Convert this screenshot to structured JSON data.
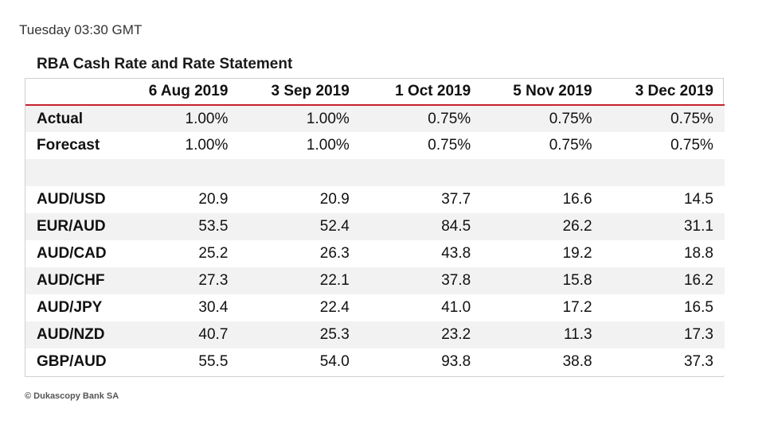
{
  "timestamp": "Tuesday 03:30 GMT",
  "table": {
    "title": "RBA Cash Rate and Rate Statement",
    "columns": [
      "6 Aug 2019",
      "3 Sep 2019",
      "1 Oct 2019",
      "5 Nov 2019",
      "3 Dec 2019"
    ],
    "rows": [
      {
        "label": "Actual",
        "values": [
          "1.00%",
          "1.00%",
          "0.75%",
          "0.75%",
          "0.75%"
        ]
      },
      {
        "label": "Forecast",
        "values": [
          "1.00%",
          "1.00%",
          "0.75%",
          "0.75%",
          "0.75%"
        ]
      },
      {
        "label": "",
        "values": [
          "",
          "",
          "",
          "",
          ""
        ]
      },
      {
        "label": "AUD/USD",
        "values": [
          "20.9",
          "20.9",
          "37.7",
          "16.6",
          "14.5"
        ]
      },
      {
        "label": "EUR/AUD",
        "values": [
          "53.5",
          "52.4",
          "84.5",
          "26.2",
          "31.1"
        ]
      },
      {
        "label": "AUD/CAD",
        "values": [
          "25.2",
          "26.3",
          "43.8",
          "19.2",
          "18.8"
        ]
      },
      {
        "label": "AUD/CHF",
        "values": [
          "27.3",
          "22.1",
          "37.8",
          "15.8",
          "16.2"
        ]
      },
      {
        "label": "AUD/JPY",
        "values": [
          "30.4",
          "22.4",
          "41.0",
          "17.2",
          "16.5"
        ]
      },
      {
        "label": "AUD/NZD",
        "values": [
          "40.7",
          "25.3",
          "23.2",
          "11.3",
          "17.3"
        ]
      },
      {
        "label": "GBP/AUD",
        "values": [
          "55.5",
          "54.0",
          "93.8",
          "38.8",
          "37.3"
        ]
      }
    ]
  },
  "footer": "© Dukascopy Bank SA",
  "colors": {
    "header_rule": "#c8202f",
    "stripe": "#f2f2f2"
  }
}
